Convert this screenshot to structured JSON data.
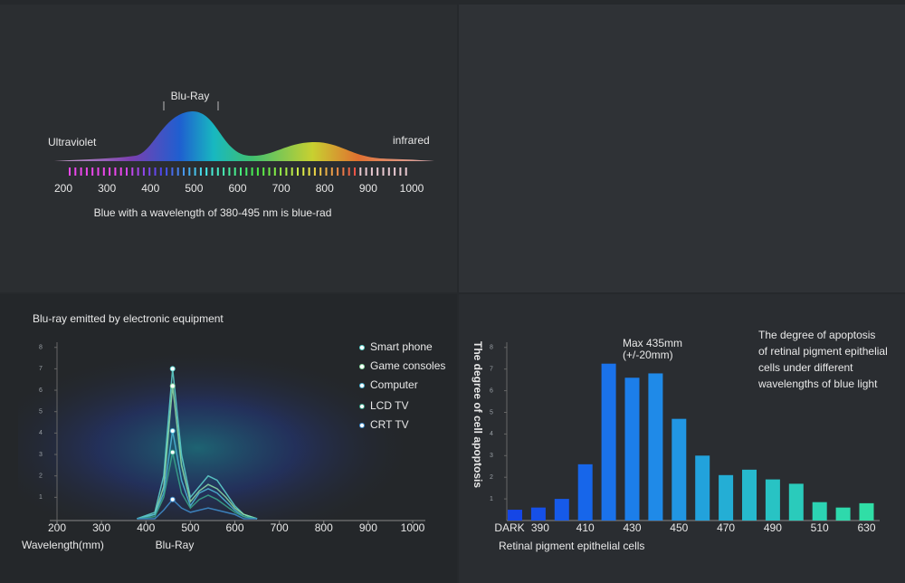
{
  "chart_data": [
    {
      "type": "spectrum",
      "labels": {
        "peak": "Blu-Ray",
        "left": "Ultraviolet",
        "right": "infrared"
      },
      "caption": "Blue  with a wavelength of 380-495 nm is blue-rad",
      "xlim": [
        200,
        1000
      ],
      "xticks": [
        200,
        300,
        400,
        500,
        600,
        700,
        800,
        900,
        1000
      ]
    },
    {
      "type": "line",
      "title": "Blu-ray emitted by electronic equipment",
      "x_label": "Wavelength(mm)",
      "x_annotation": "Blu-Ray",
      "x": [
        380,
        420,
        440,
        460,
        480,
        500,
        520,
        540,
        560,
        580,
        600,
        620,
        650
      ],
      "xlim": [
        200,
        1000
      ],
      "xticks": [
        200,
        300,
        400,
        500,
        600,
        700,
        800,
        900,
        1000
      ],
      "ylim": [
        0,
        8.2
      ],
      "yticks": [
        1,
        2,
        3,
        4,
        5,
        6,
        7,
        8
      ],
      "series": [
        {
          "name": "Smart phone",
          "color": "#5fd6d0",
          "values": [
            0,
            0.3,
            2,
            7,
            3,
            1,
            1.5,
            2,
            1.8,
            1.2,
            0.6,
            0.2,
            0
          ]
        },
        {
          "name": "Game consoles",
          "color": "#8ee0a8",
          "values": [
            0,
            0.2,
            1.5,
            6.2,
            2.5,
            0.8,
            1.3,
            1.6,
            1.4,
            1,
            0.5,
            0.2,
            0
          ]
        },
        {
          "name": "Computer",
          "color": "#4fb8d8",
          "values": [
            0,
            0.2,
            1.2,
            4.1,
            1.8,
            0.6,
            1.2,
            1.4,
            1.2,
            0.8,
            0.4,
            0.1,
            0
          ]
        },
        {
          "name": "LCD TV",
          "color": "#3aa88c",
          "values": [
            0,
            0.1,
            1,
            3.1,
            1.2,
            0.5,
            0.9,
            1.1,
            0.9,
            0.6,
            0.3,
            0.1,
            0
          ]
        },
        {
          "name": "CRT TV",
          "color": "#3f8fd0",
          "values": [
            0,
            0,
            0.4,
            0.9,
            0.5,
            0.3,
            0.4,
            0.5,
            0.4,
            0.3,
            0.2,
            0,
            0
          ]
        }
      ]
    },
    {
      "type": "bar",
      "y_label": "The degree of cell apoptosis",
      "x_label": "Retinal pigment epithelial cells",
      "annotation": [
        "Max 435mm",
        "(+/-20mm)"
      ],
      "note": [
        "The degree of apoptosis",
        "of retinal pigment epithelial",
        "cells under different",
        "wavelengths of blue light"
      ],
      "categories": [
        "DARK",
        "390",
        null,
        "410",
        null,
        "430",
        null,
        "450",
        null,
        "470",
        null,
        "490",
        null,
        "510",
        null,
        "630"
      ],
      "values": [
        0.5,
        0.6,
        1.0,
        2.6,
        7.25,
        6.6,
        6.8,
        4.7,
        3.0,
        2.1,
        2.35,
        1.9,
        1.7,
        0.85,
        0.6,
        0.8
      ],
      "colors": [
        "#1546e6",
        "#1650e8",
        "#165ae9",
        "#1766ea",
        "#1a72eb",
        "#1c7eea",
        "#1f8ae8",
        "#2196e3",
        "#22a2dc",
        "#24aed5",
        "#26b9cd",
        "#28c3c4",
        "#2acbbb",
        "#2cd3b3",
        "#2ed9ac",
        "#30dea6"
      ],
      "ylim": [
        0,
        8.2
      ],
      "yticks": [
        1,
        2,
        3,
        4,
        5,
        6,
        7,
        8
      ]
    }
  ]
}
